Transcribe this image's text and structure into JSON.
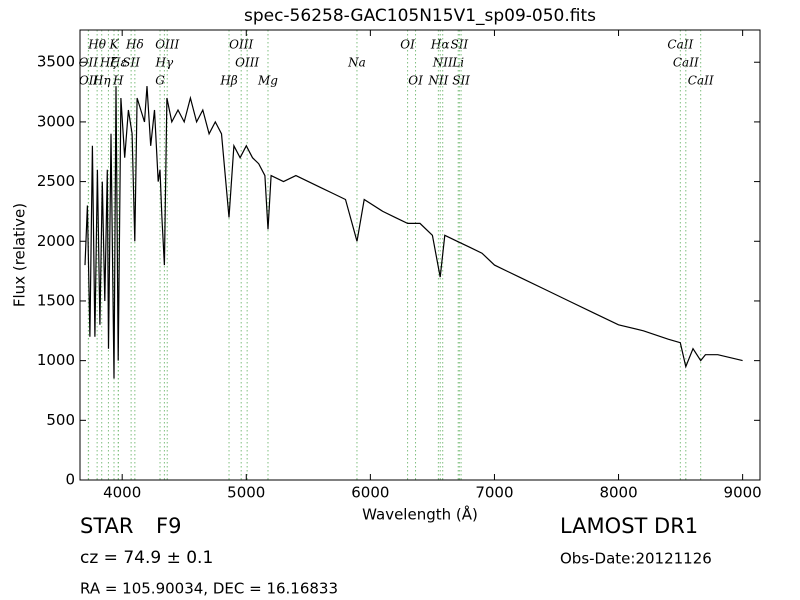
{
  "chart_data": {
    "type": "line",
    "title": "spec-56258-GAC105N15V1_sp09-050.fits",
    "x_label": "Wavelength (Å)",
    "y_label": "Flux (relative)",
    "color": "#000000",
    "line_color": "#7fbf7f",
    "xlim": [
      3660,
      9140
    ],
    "ylim": [
      0,
      3770
    ],
    "xticks": [
      4000,
      5000,
      6000,
      7000,
      8000,
      9000
    ],
    "yticks": [
      0,
      500,
      1000,
      1500,
      2000,
      2500,
      3000,
      3500
    ],
    "x": [
      3700,
      3720,
      3740,
      3760,
      3780,
      3800,
      3820,
      3840,
      3860,
      3880,
      3890,
      3910,
      3934,
      3950,
      3968,
      3990,
      4020,
      4050,
      4080,
      4102,
      4120,
      4150,
      4180,
      4200,
      4230,
      4260,
      4290,
      4305,
      4320,
      4340,
      4360,
      4400,
      4450,
      4500,
      4550,
      4600,
      4650,
      4700,
      4750,
      4800,
      4861,
      4900,
      4950,
      5000,
      5050,
      5100,
      5150,
      5175,
      5200,
      5300,
      5400,
      5500,
      5600,
      5700,
      5800,
      5892,
      5950,
      6100,
      6200,
      6300,
      6400,
      6500,
      6563,
      6600,
      6700,
      6800,
      6900,
      7000,
      7200,
      7400,
      7600,
      7800,
      8000,
      8200,
      8400,
      8498,
      8542,
      8600,
      8662,
      8700,
      8800,
      9000
    ],
    "values": [
      1800,
      2300,
      1200,
      2800,
      1200,
      2600,
      1300,
      2500,
      1500,
      2600,
      1100,
      2900,
      850,
      3300,
      1000,
      3200,
      2700,
      3100,
      2900,
      2000,
      3200,
      3100,
      3000,
      3300,
      2800,
      3100,
      2500,
      2600,
      2200,
      1800,
      3200,
      3000,
      3100,
      3000,
      3200,
      3000,
      3100,
      2900,
      3000,
      2900,
      2200,
      2800,
      2700,
      2800,
      2700,
      2650,
      2550,
      2100,
      2550,
      2500,
      2550,
      2500,
      2450,
      2400,
      2350,
      2000,
      2350,
      2250,
      2200,
      2150,
      2150,
      2050,
      1700,
      2050,
      2000,
      1950,
      1900,
      1800,
      1700,
      1600,
      1500,
      1400,
      1300,
      1250,
      1180,
      1150,
      950,
      1100,
      1000,
      1050,
      1050,
      1000
    ],
    "lines": [
      {
        "label": "Hθ",
        "wavelength": 3798
      },
      {
        "label": "K",
        "wavelength": 3934
      },
      {
        "label": "Hδ",
        "wavelength": 4102
      },
      {
        "label": "OIII",
        "wavelength": 4363
      },
      {
        "label": "OIII",
        "wavelength": 4959
      },
      {
        "label": "OI",
        "wavelength": 6300
      },
      {
        "label": "Hα",
        "wavelength": 6563
      },
      {
        "label": "SII",
        "wavelength": 6717
      },
      {
        "label": "CaII",
        "wavelength": 8498
      },
      {
        "label": "OII",
        "wavelength": 3727
      },
      {
        "label": "Hζ",
        "wavelength": 3889
      },
      {
        "label": "Hε",
        "wavelength": 3970
      },
      {
        "label": "SII",
        "wavelength": 4072
      },
      {
        "label": "Hγ",
        "wavelength": 4340
      },
      {
        "label": "OIII",
        "wavelength": 5007
      },
      {
        "label": "Na",
        "wavelength": 5892
      },
      {
        "label": "NII",
        "wavelength": 6583
      },
      {
        "label": "Li",
        "wavelength": 6708
      },
      {
        "label": "CaII",
        "wavelength": 8542
      },
      {
        "label": "OII",
        "wavelength": 3729
      },
      {
        "label": "Hη",
        "wavelength": 3835
      },
      {
        "label": "H",
        "wavelength": 3968
      },
      {
        "label": "G",
        "wavelength": 4305
      },
      {
        "label": "Hβ",
        "wavelength": 4861
      },
      {
        "label": "Mg",
        "wavelength": 5175
      },
      {
        "label": "OI",
        "wavelength": 6364
      },
      {
        "label": "NII",
        "wavelength": 6548
      },
      {
        "label": "SII",
        "wavelength": 6731
      },
      {
        "label": "CaII",
        "wavelength": 8662
      }
    ],
    "info": {
      "class": "STAR",
      "subclass": "F9",
      "cz": "cz = 74.9 ± 0.1",
      "coords": "RA = 105.90034, DEC = 16.16833",
      "survey": "LAMOST DR1",
      "obs_date": "Obs-Date:20121126"
    }
  }
}
